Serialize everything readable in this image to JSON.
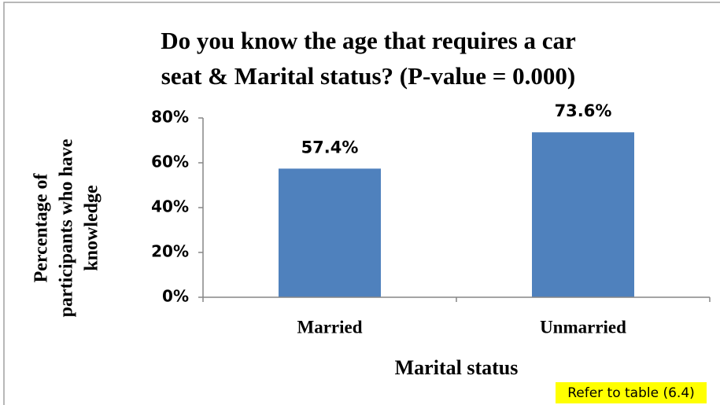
{
  "chart_data": {
    "type": "bar",
    "title": [
      "Do you know the age that requires a car",
      "seat & Marital status? (P-value = 0.000)"
    ],
    "y_label": [
      "Percentage of",
      "participants who have",
      "knowledge"
    ],
    "x_label": "Marital status",
    "categories": [
      "Married",
      "Unmarried"
    ],
    "values": [
      57.4,
      73.6
    ],
    "value_labels": [
      "57.4%",
      "73.6%"
    ],
    "color": "#4f81bd",
    "ylim": [
      0,
      80
    ],
    "yticks": [
      {
        "value": 0,
        "label": "0%"
      },
      {
        "value": 20,
        "label": "20%"
      },
      {
        "value": 40,
        "label": "40%"
      },
      {
        "value": 60,
        "label": "60%"
      },
      {
        "value": 80,
        "label": "80%"
      }
    ],
    "annotation": "Refer to table (6.4)"
  }
}
